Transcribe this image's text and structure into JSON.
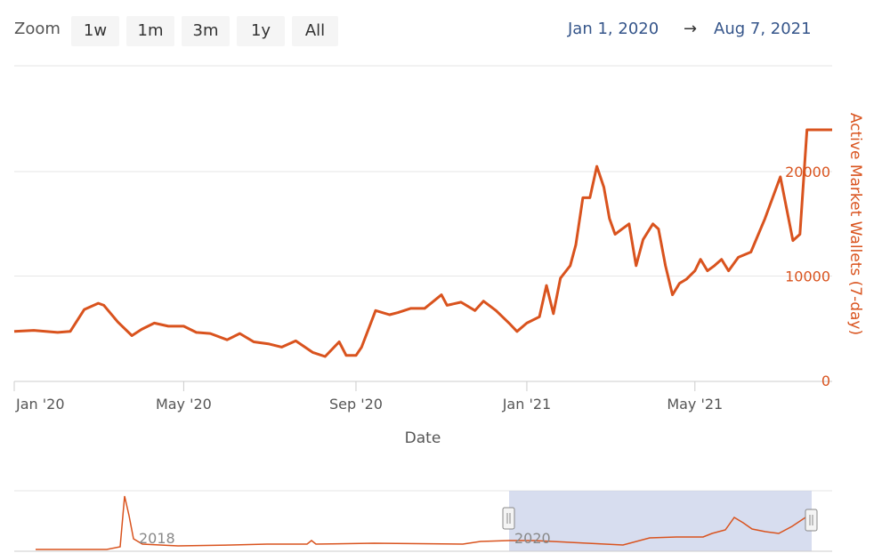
{
  "toolbar": {
    "zoom_label": "Zoom",
    "buttons": [
      "1w",
      "1m",
      "3m",
      "1y",
      "All"
    ],
    "range_from": "Jan 1, 2020",
    "range_arrow": "→",
    "range_to": "Aug 7, 2021"
  },
  "colors": {
    "series": "#d9531e",
    "axis_text": "#555555",
    "yaxis_text": "#d9531e",
    "navigator_mask": "#c9d2ea",
    "grid": "#e6e6e6"
  },
  "chart_data": {
    "type": "line",
    "xlabel": "Date",
    "ylabel": "Active Market Wallets (7-day)",
    "x_ticks": [
      "Jan '20",
      "May '20",
      "Sep '20",
      "Jan '21",
      "May '21"
    ],
    "y_ticks": [
      "0",
      "10000",
      "20000"
    ],
    "ylim": [
      0,
      24000
    ],
    "xlim": [
      "2020-01-01",
      "2021-08-07"
    ],
    "grid": true,
    "series": [
      {
        "x": [
          "2020-01-01",
          "2020-01-15",
          "2020-02-01",
          "2020-02-10",
          "2020-02-20",
          "2020-03-01",
          "2020-03-05",
          "2020-03-15",
          "2020-03-25",
          "2020-04-01",
          "2020-04-10",
          "2020-04-20",
          "2020-05-01",
          "2020-05-10",
          "2020-05-20",
          "2020-06-01",
          "2020-06-10",
          "2020-06-20",
          "2020-07-01",
          "2020-07-10",
          "2020-07-20",
          "2020-08-01",
          "2020-08-10",
          "2020-08-20",
          "2020-08-25",
          "2020-09-01",
          "2020-09-05",
          "2020-09-15",
          "2020-09-25",
          "2020-10-01",
          "2020-10-10",
          "2020-10-20",
          "2020-11-01",
          "2020-11-05",
          "2020-11-15",
          "2020-11-25",
          "2020-12-01",
          "2020-12-10",
          "2020-12-20",
          "2020-12-25",
          "2021-01-01",
          "2021-01-10",
          "2021-01-15",
          "2021-01-20",
          "2021-01-25",
          "2021-02-01",
          "2021-02-05",
          "2021-02-10",
          "2021-02-15",
          "2021-02-20",
          "2021-02-25",
          "2021-03-01",
          "2021-03-05",
          "2021-03-10",
          "2021-03-15",
          "2021-03-20",
          "2021-03-25",
          "2021-04-01",
          "2021-04-05",
          "2021-04-10",
          "2021-04-15",
          "2021-04-20",
          "2021-04-25",
          "2021-05-01",
          "2021-05-05",
          "2021-05-10",
          "2021-05-15",
          "2021-05-20",
          "2021-05-25",
          "2021-06-01",
          "2021-06-10",
          "2021-06-20",
          "2021-07-01",
          "2021-07-10",
          "2021-07-15",
          "2021-07-20",
          "2021-07-25",
          "2021-08-01",
          "2021-08-07"
        ],
        "values": [
          4700,
          4800,
          4600,
          4700,
          6800,
          7400,
          7200,
          5600,
          4300,
          4900,
          5500,
          5200,
          5200,
          4600,
          4500,
          3900,
          4500,
          3700,
          3500,
          3200,
          3800,
          2700,
          2300,
          3700,
          2400,
          2400,
          3200,
          6700,
          6300,
          6500,
          6900,
          6900,
          8200,
          7200,
          7500,
          6700,
          7600,
          6700,
          5400,
          4700,
          5500,
          6100,
          9100,
          6400,
          9800,
          11000,
          13000,
          17500,
          17500,
          20500,
          18500,
          15500,
          14000,
          14500,
          15000,
          11000,
          13500,
          15000,
          14500,
          11000,
          8200,
          9300,
          9700,
          10500,
          11600,
          10500,
          11000,
          11600,
          10500,
          11800,
          12300,
          15500,
          19500,
          13400,
          14000,
          24000,
          24000,
          24000,
          24000
        ]
      }
    ]
  },
  "navigator": {
    "labels": [
      "2018",
      "2020"
    ]
  }
}
